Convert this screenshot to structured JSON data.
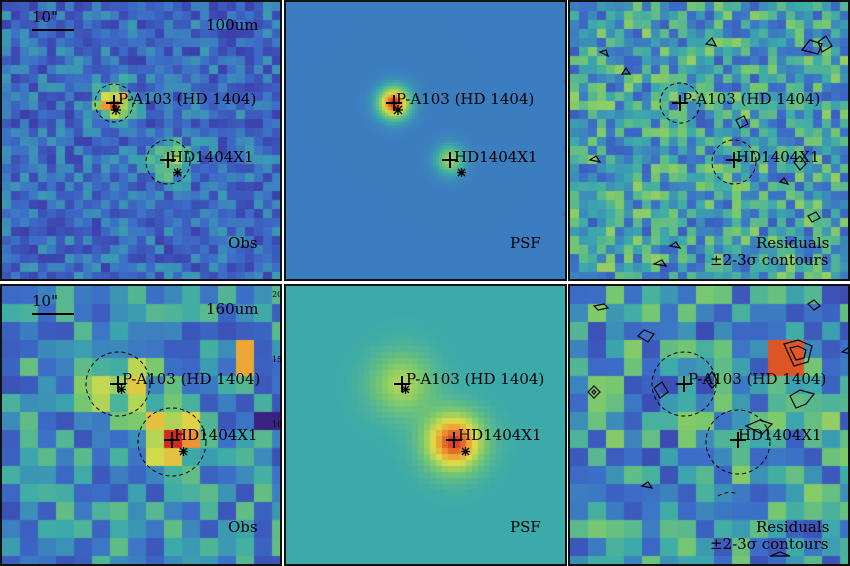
{
  "scale_bar": "10\"",
  "rows": [
    {
      "band": "100um",
      "panels": [
        {
          "type": "obs",
          "label": "Obs"
        },
        {
          "type": "psf",
          "label": "PSF"
        },
        {
          "type": "res",
          "label_1": "Residuals",
          "label_2": "±2-3σ contours"
        }
      ]
    },
    {
      "band": "160um",
      "panels": [
        {
          "type": "obs",
          "label": "Obs"
        },
        {
          "type": "psf",
          "label": "PSF"
        },
        {
          "type": "res",
          "label_1": "Residuals",
          "label_2": "±2-3σ contours"
        }
      ]
    }
  ],
  "sources": [
    {
      "name": "P-A103 (HD 1404)"
    },
    {
      "name": "HD1404X1"
    }
  ],
  "axis_ticks_right": [
    "20",
    "15",
    "10"
  ]
}
